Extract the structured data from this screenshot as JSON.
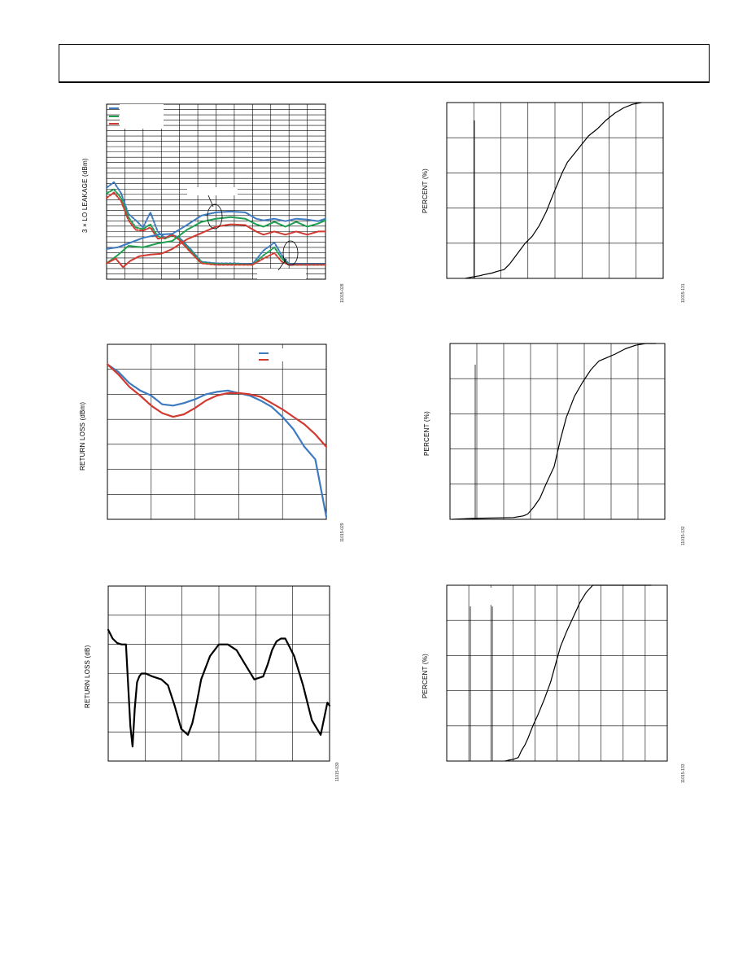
{
  "header": {
    "text": ""
  },
  "charts": [
    {
      "id": "lo-leakage",
      "ylabel": "3 × LO LEAKAGE (dBm)",
      "fig_id": "11015-028"
    },
    {
      "id": "percent-1",
      "ylabel": "PERCENT (%)",
      "fig_id": "11015-131"
    },
    {
      "id": "return-loss-1",
      "ylabel": "RETURN LOSS (dBm)",
      "fig_id": "11015-029"
    },
    {
      "id": "percent-2",
      "ylabel": "PERCENT (%)",
      "fig_id": "11015-132"
    },
    {
      "id": "return-loss-2",
      "ylabel": "RETURN LOSS (dB)",
      "fig_id": "11015-030"
    },
    {
      "id": "percent-3",
      "ylabel": "PERCENT (%)",
      "fig_id": "11015-133"
    }
  ],
  "colors": {
    "blue": "#3d7ac0",
    "green": "#1fa050",
    "red": "#d03a30",
    "black": "#000000"
  },
  "chart_data": [
    {
      "type": "line",
      "title": "",
      "ylabel": "3 × LO LEAKAGE (dBm)",
      "xlim": [
        0,
        12
      ],
      "ylim": [
        0,
        22
      ],
      "series": [
        {
          "color": "blue",
          "style": "dotted",
          "x": [
            0,
            0.4,
            0.8,
            1.2,
            1.6,
            2,
            2.4,
            2.8,
            3.2,
            3.6,
            4,
            4.6,
            5.2,
            6,
            7,
            8,
            8.6,
            9.2,
            9.6,
            10,
            10.6,
            11.2,
            12
          ],
          "y": [
            11.5,
            12.2,
            10.8,
            8.2,
            7.4,
            6.5,
            8.4,
            6.0,
            5.2,
            5.6,
            5.2,
            3.8,
            2.2,
            2.0,
            2.0,
            1.9,
            3.6,
            4.6,
            3.0,
            1.9,
            1.9,
            1.9,
            1.9
          ]
        },
        {
          "color": "green",
          "style": "dotted",
          "x": [
            0,
            0.4,
            0.8,
            1.2,
            1.6,
            2,
            2.4,
            2.8,
            3.2,
            3.6,
            4,
            4.6,
            5.2,
            6,
            7,
            8,
            8.6,
            9.2,
            9.6,
            10,
            10.6,
            11.2,
            12
          ],
          "y": [
            10.8,
            11.3,
            10.2,
            7.8,
            6.5,
            6.3,
            6.9,
            5.4,
            5.1,
            5.5,
            5.0,
            3.6,
            2.1,
            1.9,
            1.9,
            1.8,
            3.0,
            4.0,
            2.6,
            1.8,
            1.8,
            1.8,
            1.8
          ]
        },
        {
          "color": "red",
          "style": "dotted",
          "x": [
            0,
            0.4,
            0.8,
            1.2,
            1.6,
            2,
            2.4,
            2.8,
            3.2,
            3.6,
            4,
            4.6,
            5.2,
            6,
            7,
            8,
            8.6,
            9.2,
            9.6,
            10,
            10.6,
            11.2,
            12
          ],
          "y": [
            10.2,
            10.9,
            9.8,
            7.4,
            6.2,
            6.1,
            6.5,
            5.1,
            5.2,
            5.6,
            4.9,
            3.4,
            2.0,
            1.8,
            1.8,
            1.8,
            2.6,
            3.3,
            2.2,
            1.8,
            1.8,
            1.8,
            1.8
          ]
        },
        {
          "color": "blue",
          "style": "solid",
          "x": [
            0,
            0.6,
            1.2,
            2,
            2.8,
            3.6,
            4.4,
            5.2,
            6,
            6.8,
            7.6,
            8.2,
            8.6,
            9.2,
            9.8,
            10.4,
            11,
            11.6,
            12
          ],
          "y": [
            3.8,
            4.0,
            4.5,
            5.2,
            5.6,
            5.7,
            6.8,
            8.0,
            8.4,
            8.5,
            8.4,
            7.6,
            7.4,
            7.6,
            7.3,
            7.6,
            7.5,
            7.3,
            7.6
          ]
        },
        {
          "color": "green",
          "style": "solid",
          "x": [
            0,
            0.6,
            1.2,
            2,
            2.8,
            3.6,
            4.4,
            5.2,
            6,
            6.8,
            7.6,
            8.2,
            8.6,
            9.2,
            9.8,
            10.4,
            11,
            11.6,
            12
          ],
          "y": [
            2.0,
            3.0,
            4.2,
            4.0,
            4.5,
            4.8,
            6.2,
            7.2,
            7.6,
            7.8,
            7.6,
            6.9,
            6.6,
            7.2,
            6.6,
            7.2,
            6.6,
            7.0,
            7.4
          ]
        },
        {
          "color": "red",
          "style": "solid",
          "x": [
            0,
            0.5,
            0.9,
            1.3,
            1.8,
            2.4,
            3,
            3.6,
            4.4,
            5.2,
            6,
            6.8,
            7.6,
            8.2,
            8.6,
            9.2,
            9.8,
            10.4,
            11,
            11.6,
            12
          ],
          "y": [
            2.0,
            2.6,
            1.5,
            2.3,
            2.9,
            3.1,
            3.2,
            3.8,
            5.0,
            5.8,
            6.6,
            6.9,
            6.8,
            6.0,
            5.6,
            6.0,
            5.6,
            6.0,
            5.6,
            6.0,
            6.0
          ]
        }
      ]
    },
    {
      "type": "line",
      "title": "",
      "ylabel": "PERCENT (%)",
      "ylim": [
        0,
        100
      ],
      "series": [
        {
          "color": "black",
          "x": [
            0,
            5,
            8,
            10,
            15,
            18,
            20,
            22,
            25,
            28,
            31,
            34,
            38,
            42,
            46,
            50,
            55,
            58,
            62,
            66,
            70,
            75,
            80,
            85,
            90,
            95,
            100
          ],
          "y": [
            0,
            1,
            1.5,
            2,
            3,
            4,
            4.5,
            5,
            8,
            12,
            16,
            20,
            24,
            30,
            38,
            48,
            60,
            66,
            71,
            76,
            81,
            85,
            90,
            94,
            97,
            99,
            100
          ]
        }
      ]
    },
    {
      "type": "line",
      "title": "",
      "ylabel": "RETURN LOSS (dBm)",
      "ylim": [
        0,
        7
      ],
      "series": [
        {
          "color": "blue",
          "x": [
            0,
            5,
            10,
            15,
            20,
            25,
            30,
            35,
            40,
            45,
            50,
            55,
            60,
            65,
            70,
            75,
            80,
            85,
            90,
            95,
            100
          ],
          "y": [
            6.2,
            5.9,
            5.45,
            5.15,
            4.95,
            4.6,
            4.55,
            4.65,
            4.8,
            5.0,
            5.1,
            5.15,
            5.05,
            4.95,
            4.75,
            4.5,
            4.1,
            3.6,
            2.9,
            2.4,
            0.1
          ]
        },
        {
          "color": "red",
          "x": [
            0,
            5,
            10,
            15,
            20,
            25,
            30,
            35,
            40,
            45,
            50,
            55,
            60,
            65,
            70,
            75,
            80,
            85,
            90,
            95,
            100
          ],
          "y": [
            6.2,
            5.8,
            5.3,
            4.95,
            4.55,
            4.25,
            4.1,
            4.2,
            4.45,
            4.75,
            4.95,
            5.05,
            5.05,
            5.0,
            4.9,
            4.65,
            4.4,
            4.1,
            3.8,
            3.4,
            2.9
          ]
        }
      ]
    },
    {
      "type": "line",
      "title": "",
      "ylabel": "PERCENT (%)",
      "ylim": [
        0,
        100
      ],
      "series": [
        {
          "color": "black",
          "x": [
            0,
            10,
            20,
            30,
            35,
            37,
            40,
            43,
            46,
            50,
            53,
            56,
            60,
            64,
            68,
            72,
            76,
            80,
            85,
            90,
            95,
            100
          ],
          "y": [
            0,
            0.5,
            0.8,
            1,
            2,
            3,
            7,
            12,
            20,
            30,
            45,
            58,
            70,
            78,
            85,
            90,
            92,
            94,
            97,
            99,
            100,
            100
          ]
        }
      ]
    },
    {
      "type": "line",
      "title": "",
      "ylabel": "RETURN LOSS (dB)",
      "ylim": [
        0,
        6
      ],
      "series": [
        {
          "color": "black",
          "x": [
            0,
            2,
            4,
            6,
            8,
            10,
            11,
            12,
            13,
            14,
            15,
            17,
            20,
            24,
            27,
            30,
            33,
            36,
            38,
            40,
            42,
            46,
            50,
            54,
            58,
            62,
            66,
            70,
            72,
            74,
            76,
            78,
            80,
            84,
            88,
            92,
            96,
            99,
            100
          ],
          "y": [
            4.5,
            4.2,
            4.05,
            4.0,
            4.0,
            1.2,
            0.5,
            1.8,
            2.7,
            2.9,
            3.0,
            3.0,
            2.9,
            2.8,
            2.6,
            1.9,
            1.1,
            0.9,
            1.3,
            2.0,
            2.8,
            3.6,
            4.0,
            4.0,
            3.8,
            3.3,
            2.8,
            2.9,
            3.3,
            3.8,
            4.1,
            4.2,
            4.2,
            3.6,
            2.6,
            1.4,
            0.9,
            2.0,
            1.9
          ]
        }
      ]
    },
    {
      "type": "line",
      "title": "",
      "ylabel": "PERCENT (%)",
      "ylim": [
        0,
        100
      ],
      "series": [
        {
          "color": "black",
          "x": [
            0,
            2,
            5,
            8,
            10,
            12,
            14,
            17,
            20,
            24,
            28,
            31,
            34,
            38,
            42,
            46,
            50,
            54,
            58,
            62,
            66,
            70,
            74,
            78,
            82,
            86,
            90
          ],
          "y": [
            0,
            0.5,
            1,
            2,
            6,
            9,
            13,
            20,
            26,
            35,
            45,
            55,
            65,
            74,
            82,
            90,
            96,
            100,
            100,
            100,
            100,
            100,
            100,
            100,
            100,
            100,
            100
          ]
        }
      ]
    }
  ]
}
